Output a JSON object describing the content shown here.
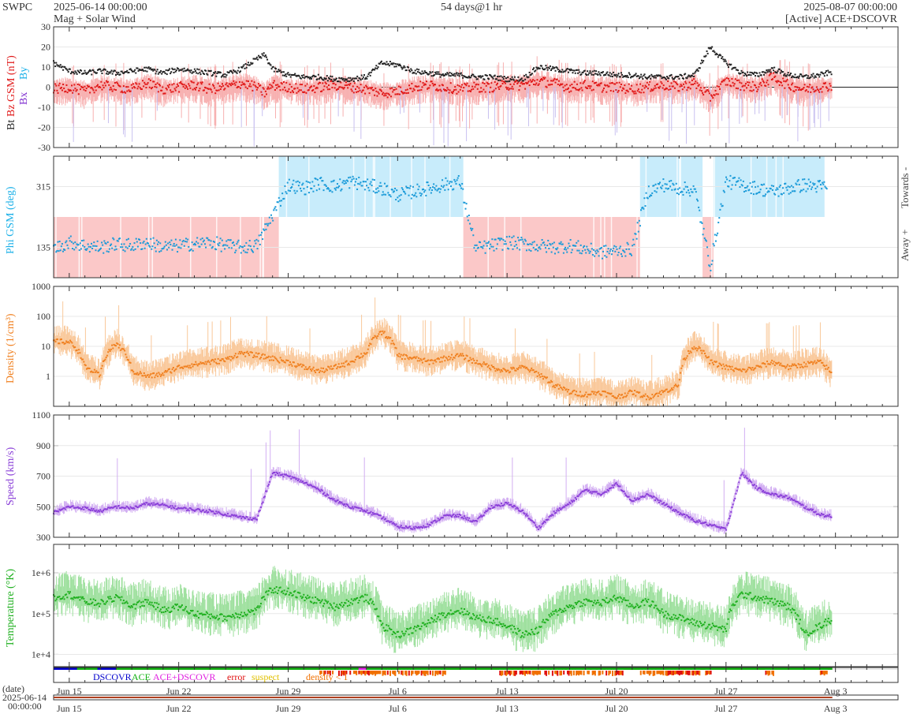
{
  "header": {
    "brand": "SWPC",
    "start_time": "2025-06-14 00:00:00",
    "subtitle": "Mag + Solar Wind",
    "span": "54 days@1 hr",
    "end_time": "2025-08-07 00:00:00",
    "source": "[Active] ACE+DSCOVR"
  },
  "legend": {
    "dscovr": "DSCOVR",
    "ace": "ACE",
    "ace_dscovr": "ACE+DSCOVR",
    "error": "error",
    "suspect": "suspect",
    "density_lt1": "density < 1"
  },
  "colors": {
    "bt": "#222222",
    "bz": "#e01818",
    "bz_band": "#f7b0b0",
    "bx": "#8030d0",
    "by": "#1ab0e8",
    "phi_toward": "#c8ecfb",
    "phi_away": "#fbc8c8",
    "phi_pts": "#1a9ad8",
    "density": "#f08020",
    "density_band": "#f9c89a",
    "speed": "#8a3fd8",
    "speed_band": "#d2aef2",
    "temp": "#20b020",
    "temp_band": "#9ee09e",
    "dscovr": "#0000cc",
    "ace": "#10b010",
    "ace_dscovr": "#e020e0",
    "error": "#e01010",
    "suspect": "#e0c000",
    "density_flag": "#f07000"
  },
  "chart_data": [
    {
      "type": "line",
      "panel": "mag",
      "ylabel_parts": [
        "Bt",
        "Bz GSM (nT)",
        "Bx",
        "By"
      ],
      "ylim": [
        -30,
        30
      ],
      "yticks": [
        -30,
        -20,
        -10,
        0,
        10,
        20,
        30
      ],
      "x_day": [
        0,
        1,
        2,
        3,
        4,
        5,
        6,
        7,
        8,
        9,
        10,
        11,
        12,
        13,
        13.5,
        14,
        15,
        16,
        17,
        18,
        19,
        20,
        21,
        22,
        23,
        24,
        25,
        26,
        27,
        28,
        29,
        30,
        31,
        32,
        33,
        34,
        35,
        36,
        37,
        38,
        39,
        40,
        41,
        42,
        43,
        44,
        45,
        46,
        47,
        48,
        49,
        50,
        51,
        52,
        53
      ],
      "series": [
        {
          "name": "Bt",
          "values": [
            12,
            8,
            7,
            8,
            7,
            8,
            9,
            7,
            9,
            8,
            7,
            6,
            9,
            14,
            16,
            9,
            6,
            5,
            5,
            4,
            4,
            5,
            12,
            11,
            8,
            7,
            6,
            6,
            5,
            5,
            4,
            4,
            10,
            9,
            8,
            7,
            7,
            6,
            6,
            5,
            5,
            5,
            6,
            20,
            12,
            7,
            6,
            9,
            6,
            5,
            6,
            8,
            7,
            6,
            7
          ]
        },
        {
          "name": "Bz",
          "values": [
            -1,
            0,
            -2,
            1,
            0,
            -1,
            2,
            -1,
            0,
            1,
            -1,
            0,
            2,
            0,
            -3,
            1,
            0,
            -1,
            0,
            1,
            0,
            -1,
            -3,
            -2,
            0,
            1,
            0,
            -1,
            0,
            0,
            1,
            1,
            3,
            2,
            0,
            1,
            0,
            0,
            -1,
            0,
            1,
            0,
            2,
            -5,
            3,
            1,
            0,
            5,
            1,
            -1,
            0,
            1,
            2,
            0,
            1
          ]
        }
      ]
    },
    {
      "type": "scatter",
      "panel": "phi",
      "ylabel": "Phi GSM (deg)",
      "ylim": [
        45,
        405
      ],
      "yticks": [
        135,
        315
      ],
      "right_labels": [
        "Towards -",
        "Away +"
      ],
      "sectors": [
        {
          "from": 0,
          "to": 14.4,
          "sector": "away"
        },
        {
          "from": 14.4,
          "to": 26.2,
          "sector": "toward"
        },
        {
          "from": 26.2,
          "to": 37.5,
          "sector": "away"
        },
        {
          "from": 37.5,
          "to": 41.5,
          "sector": "toward"
        },
        {
          "from": 41.5,
          "to": 42.2,
          "sector": "away"
        },
        {
          "from": 42.2,
          "to": 49.3,
          "sector": "toward"
        }
      ],
      "series": [
        {
          "name": "Phi",
          "points": [
            [
              0,
              130
            ],
            [
              1,
              150
            ],
            [
              2,
              140
            ],
            [
              3,
              135
            ],
            [
              4,
              145
            ],
            [
              5,
              140
            ],
            [
              6,
              150
            ],
            [
              7,
              135
            ],
            [
              8,
              140
            ],
            [
              9,
              145
            ],
            [
              10,
              150
            ],
            [
              11,
              140
            ],
            [
              12,
              135
            ],
            [
              13,
              140
            ],
            [
              15,
              320
            ],
            [
              16,
              310
            ],
            [
              17,
              325
            ],
            [
              18,
              315
            ],
            [
              19,
              330
            ],
            [
              20,
              320
            ],
            [
              21,
              310
            ],
            [
              22,
              290
            ],
            [
              23,
              300
            ],
            [
              24,
              310
            ],
            [
              25,
              320
            ],
            [
              26,
              330
            ],
            [
              27,
              130
            ],
            [
              28,
              140
            ],
            [
              29,
              150
            ],
            [
              30,
              145
            ],
            [
              31,
              140
            ],
            [
              32,
              135
            ],
            [
              33,
              140
            ],
            [
              34,
              130
            ],
            [
              35,
              120
            ],
            [
              36,
              125
            ],
            [
              37,
              130
            ],
            [
              38,
              300
            ],
            [
              39,
              320
            ],
            [
              40,
              310
            ],
            [
              41,
              305
            ],
            [
              42,
              80
            ],
            [
              43,
              330
            ],
            [
              44,
              320
            ],
            [
              45,
              310
            ],
            [
              46,
              300
            ],
            [
              47,
              310
            ],
            [
              48,
              320
            ],
            [
              49,
              315
            ]
          ]
        }
      ]
    },
    {
      "type": "area",
      "panel": "density",
      "ylabel": "Density (1/cm³)",
      "ylog": true,
      "ylim": [
        0.1,
        1000
      ],
      "yticks": [
        1,
        10,
        100,
        1000
      ],
      "x_day": [
        0,
        1,
        2,
        3,
        4,
        5,
        6,
        7,
        8,
        9,
        10,
        11,
        12,
        13,
        14,
        15,
        16,
        17,
        18,
        19,
        20,
        21,
        22,
        23,
        24,
        25,
        26,
        27,
        28,
        29,
        30,
        31,
        32,
        33,
        34,
        35,
        36,
        37,
        38,
        39,
        40,
        41,
        42,
        43,
        44,
        45,
        46,
        47,
        48,
        49,
        50,
        51,
        52,
        53
      ],
      "series": [
        {
          "name": "Density",
          "values": [
            15,
            14,
            2,
            1,
            12,
            1.5,
            1,
            1.2,
            2,
            2.5,
            3,
            3.5,
            6,
            5,
            4,
            3,
            2,
            1.5,
            2,
            3,
            6,
            30,
            5,
            4,
            3,
            4,
            5,
            3,
            2,
            1.5,
            2,
            1.2,
            0.5,
            0.3,
            0.25,
            0.3,
            0.2,
            0.3,
            0.2,
            0.3,
            0.5,
            10,
            3,
            2,
            1.5,
            2,
            3,
            2,
            2.5,
            3,
            0.6,
            3,
            2.5,
            2
          ]
        }
      ]
    },
    {
      "type": "area",
      "panel": "speed",
      "ylabel": "Speed (km/s)",
      "ylim": [
        300,
        1100
      ],
      "yticks": [
        300,
        500,
        700,
        900,
        1100
      ],
      "x_day": [
        0,
        1,
        2,
        3,
        4,
        5,
        6,
        7,
        8,
        9,
        10,
        11,
        12,
        13,
        14,
        15,
        16,
        17,
        18,
        19,
        20,
        21,
        22,
        23,
        24,
        25,
        26,
        27,
        28,
        29,
        30,
        31,
        32,
        33,
        34,
        35,
        36,
        37,
        38,
        39,
        40,
        41,
        42,
        43,
        44,
        45,
        46,
        47,
        48,
        49,
        50,
        51,
        52,
        53
      ],
      "series": [
        {
          "name": "Speed",
          "values": [
            460,
            500,
            490,
            470,
            500,
            490,
            520,
            510,
            490,
            480,
            470,
            450,
            430,
            420,
            720,
            700,
            660,
            610,
            540,
            500,
            470,
            430,
            370,
            360,
            380,
            440,
            440,
            400,
            500,
            520,
            470,
            360,
            460,
            520,
            610,
            580,
            650,
            540,
            580,
            520,
            460,
            410,
            380,
            350,
            720,
            620,
            580,
            560,
            500,
            450,
            430,
            420,
            470,
            470
          ]
        }
      ]
    },
    {
      "type": "area",
      "panel": "temperature",
      "ylabel": "Temperature (°K)",
      "ylog": true,
      "ylim": [
        5000,
        5000000
      ],
      "yticks": [
        10000,
        100000,
        1000000
      ],
      "ytick_labels": [
        "1e+4",
        "1e+5",
        "1e+6"
      ],
      "x_day": [
        0,
        1,
        2,
        3,
        4,
        5,
        6,
        7,
        8,
        9,
        10,
        11,
        12,
        13,
        14,
        15,
        16,
        17,
        18,
        19,
        20,
        21,
        22,
        23,
        24,
        25,
        26,
        27,
        28,
        29,
        30,
        31,
        32,
        33,
        34,
        35,
        36,
        37,
        38,
        39,
        40,
        41,
        42,
        43,
        44,
        45,
        46,
        47,
        48,
        49,
        50,
        51,
        52,
        53
      ],
      "series": [
        {
          "name": "Temperature",
          "values": [
            250000,
            300000,
            200000,
            180000,
            250000,
            150000,
            200000,
            120000,
            150000,
            100000,
            90000,
            80000,
            100000,
            120000,
            400000,
            350000,
            250000,
            200000,
            150000,
            200000,
            250000,
            50000,
            30000,
            40000,
            60000,
            100000,
            120000,
            80000,
            70000,
            50000,
            30000,
            40000,
            100000,
            150000,
            200000,
            180000,
            250000,
            150000,
            200000,
            100000,
            80000,
            60000,
            50000,
            40000,
            300000,
            250000,
            200000,
            150000,
            30000,
            50000,
            80000,
            100000,
            120000,
            90000
          ]
        }
      ]
    }
  ],
  "time_axis": {
    "tick_labels": [
      "Jun 15",
      "Jun 22",
      "Jun 29",
      "Jul 6",
      "Jul 13",
      "Jul 20",
      "Jul 27",
      "Aug 3"
    ],
    "tick_days": [
      1,
      8,
      15,
      22,
      29,
      36,
      43,
      50
    ],
    "total_days": 54,
    "date_label": "(date)",
    "date_value": "2025-06-14",
    "time_value": "00:00:00"
  }
}
